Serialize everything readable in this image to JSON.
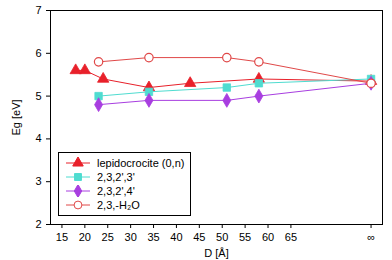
{
  "chart_data": {
    "type": "line",
    "xlabel": "D [Å]",
    "ylabel": "Eg [eV]",
    "xlim": [
      12.5,
      85
    ],
    "ylim": [
      2,
      7
    ],
    "xticks": [
      15,
      20,
      25,
      30,
      35,
      40,
      45,
      50,
      55,
      60,
      65,
      {
        "value": 82.5,
        "label": "∞"
      }
    ],
    "yticks": [
      2,
      3,
      4,
      5,
      6,
      7
    ],
    "grid": false,
    "legend": "lower left",
    "series": [
      {
        "name": "lepidocrocite (0,n)",
        "color": "#e8202a",
        "marker": "triangle",
        "x": [
          18,
          20,
          24,
          34,
          43,
          58,
          82.5
        ],
        "values": [
          5.6,
          5.6,
          5.4,
          5.2,
          5.3,
          5.4,
          5.35
        ]
      },
      {
        "name": "2,3,2',3'",
        "color": "#4fdcd0",
        "marker": "square",
        "x": [
          23,
          34,
          51,
          58,
          82.5
        ],
        "values": [
          5.0,
          5.1,
          5.2,
          5.3,
          5.4
        ]
      },
      {
        "name": "2,3,2',4'",
        "color": "#a83ee0",
        "marker": "diamond",
        "x": [
          23,
          34,
          51,
          58,
          82.5
        ],
        "values": [
          4.8,
          4.9,
          4.9,
          5.0,
          5.3
        ]
      },
      {
        "name": "2,3,-H₂O",
        "color": "#e04848",
        "marker": "open circle",
        "x": [
          23,
          34,
          51,
          58,
          82.5
        ],
        "values": [
          5.8,
          5.9,
          5.9,
          5.8,
          5.3
        ]
      }
    ]
  }
}
